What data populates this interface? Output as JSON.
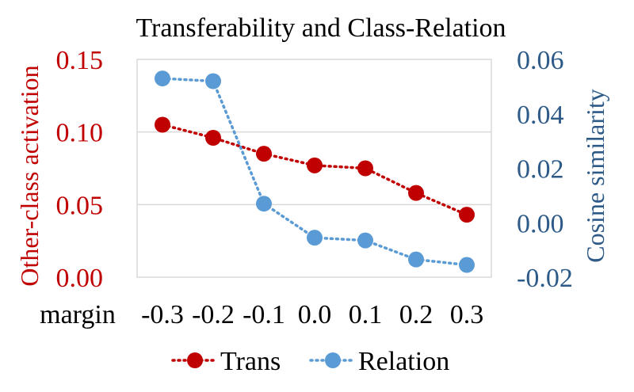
{
  "chart_data": {
    "type": "line",
    "title": "Transferability and Class-Relation",
    "xlabel": "margin",
    "ylabel_left": "Other-class activation",
    "ylabel_right": "Cosine similarity",
    "categories": [
      "-0.3",
      "-0.2",
      "-0.1",
      "0.0",
      "0.1",
      "0.2",
      "0.3"
    ],
    "ylim_left": [
      0,
      0.15
    ],
    "ylim_right": [
      -0.02,
      0.06
    ],
    "yticks_left": [
      "0.00",
      "0.05",
      "0.10",
      "0.15"
    ],
    "yticks_right": [
      "-0.02",
      "0.00",
      "0.02",
      "0.04",
      "0.06"
    ],
    "grid": true,
    "legend_position": "bottom",
    "series": [
      {
        "name": "Trans",
        "axis": "left",
        "color": "#C00000",
        "values": [
          0.105,
          0.096,
          0.085,
          0.077,
          0.075,
          0.058,
          0.043
        ]
      },
      {
        "name": "Relation",
        "axis": "right",
        "color": "#5B9BD5",
        "values": [
          0.053,
          0.052,
          0.007,
          -0.0055,
          -0.0065,
          -0.0135,
          -0.0155
        ]
      }
    ],
    "colors": {
      "left_axis_text": "#C00000",
      "right_axis_text": "#2E5A88",
      "grid": "#D9D9D9"
    }
  }
}
